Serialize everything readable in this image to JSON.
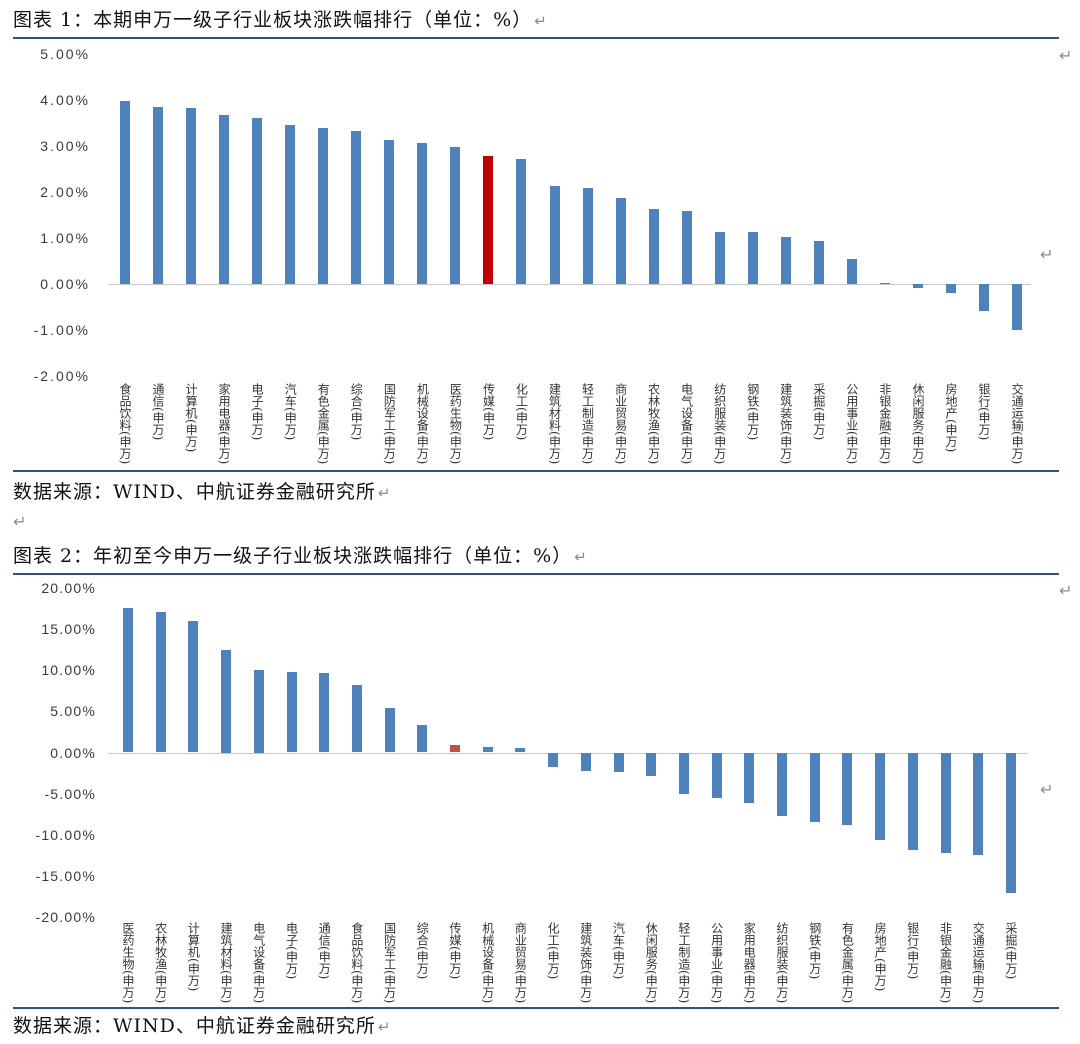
{
  "page": {
    "return_mark": "↵"
  },
  "figures": [
    {
      "source": "数据来源：WIND、中航证券金融研究所"
    },
    {
      "source": "数据来源：WIND、中航证券金融研究所"
    }
  ],
  "chart_data": [
    {
      "type": "bar",
      "title": "图表 1：本期申万一级子行业板块涨跌幅排行（单位：%）",
      "categories": [
        "食品饮料(申万)",
        "通信(申万)",
        "计算机(申万)",
        "家用电器(申万)",
        "电子(申万)",
        "汽车(申万)",
        "有色金属(申万)",
        "综合(申万)",
        "国防军工(申万)",
        "机械设备(申万)",
        "医药生物(申万)",
        "传媒(申万)",
        "化工(申万)",
        "建筑材料(申万)",
        "轻工制造(申万)",
        "商业贸易(申万)",
        "农林牧渔(申万)",
        "电气设备(申万)",
        "纺织服装(申万)",
        "钢铁(申万)",
        "建筑装饰(申万)",
        "采掘(申万)",
        "公用事业(申万)",
        "非银金融(申万)",
        "休闲服务(申万)",
        "房地产(申万)",
        "银行(申万)",
        "交通运输(申万)"
      ],
      "values": [
        3.98,
        3.85,
        3.82,
        3.67,
        3.6,
        3.45,
        3.4,
        3.32,
        3.13,
        3.07,
        2.97,
        2.78,
        2.72,
        2.14,
        2.08,
        1.87,
        1.63,
        1.59,
        1.12,
        1.12,
        1.03,
        0.93,
        0.54,
        0.03,
        -0.09,
        -0.19,
        -0.58,
        -1.01
      ],
      "y_ticks": [
        5,
        4,
        3,
        2,
        1,
        0,
        -1,
        -2
      ],
      "y_tick_labels": [
        "5.00%",
        "4.00%",
        "3.00%",
        "2.00%",
        "1.00%",
        "0.00%",
        "-1.00%",
        "-2.00%"
      ],
      "ylim": [
        -2,
        5
      ],
      "grid": false,
      "highlight_index": 11,
      "colors": {
        "bar": "#4F81BD",
        "highlight": "#C00000"
      }
    },
    {
      "type": "bar",
      "title": "图表 2：年初至今申万一级子行业板块涨跌幅排行（单位：%）",
      "categories": [
        "医药生物(申万)",
        "农林牧渔(申万)",
        "计算机(申万)",
        "建筑材料(申万)",
        "电气设备(申万)",
        "电子(申万)",
        "通信(申万)",
        "食品饮料(申万)",
        "国防军工(申万)",
        "综合(申万)",
        "传媒(申万)",
        "机械设备(申万)",
        "商业贸易(申万)",
        "化工(申万)",
        "建筑装饰(申万)",
        "汽车(申万)",
        "休闲服务(申万)",
        "轻工制造(申万)",
        "公用事业(申万)",
        "家用电器(申万)",
        "纺织服装(申万)",
        "钢铁(申万)",
        "有色金属(申万)",
        "房地产(申万)",
        "银行(申万)",
        "非银金融(申万)",
        "交通运输(申万)",
        "采掘(申万)"
      ],
      "values": [
        17.6,
        17.1,
        16.0,
        12.5,
        10.0,
        9.8,
        9.7,
        8.2,
        5.4,
        3.3,
        0.9,
        0.7,
        0.5,
        -1.8,
        -2.3,
        -2.4,
        -2.8,
        -5.1,
        -5.5,
        -6.2,
        -7.7,
        -8.5,
        -8.8,
        -10.6,
        -11.8,
        -12.2,
        -12.5,
        -17.1
      ],
      "y_ticks": [
        20,
        15,
        10,
        5,
        0,
        -5,
        -10,
        -15,
        -20
      ],
      "y_tick_labels": [
        "20.00%",
        "15.00%",
        "10.00%",
        "5.00%",
        "0.00%",
        "-5.00%",
        "-10.00%",
        "-15.00%",
        "-20.00%"
      ],
      "ylim": [
        -20,
        20
      ],
      "grid": false,
      "highlight_index": 10,
      "colors": {
        "bar": "#4F81BD",
        "highlight": "#C0504D"
      }
    }
  ]
}
